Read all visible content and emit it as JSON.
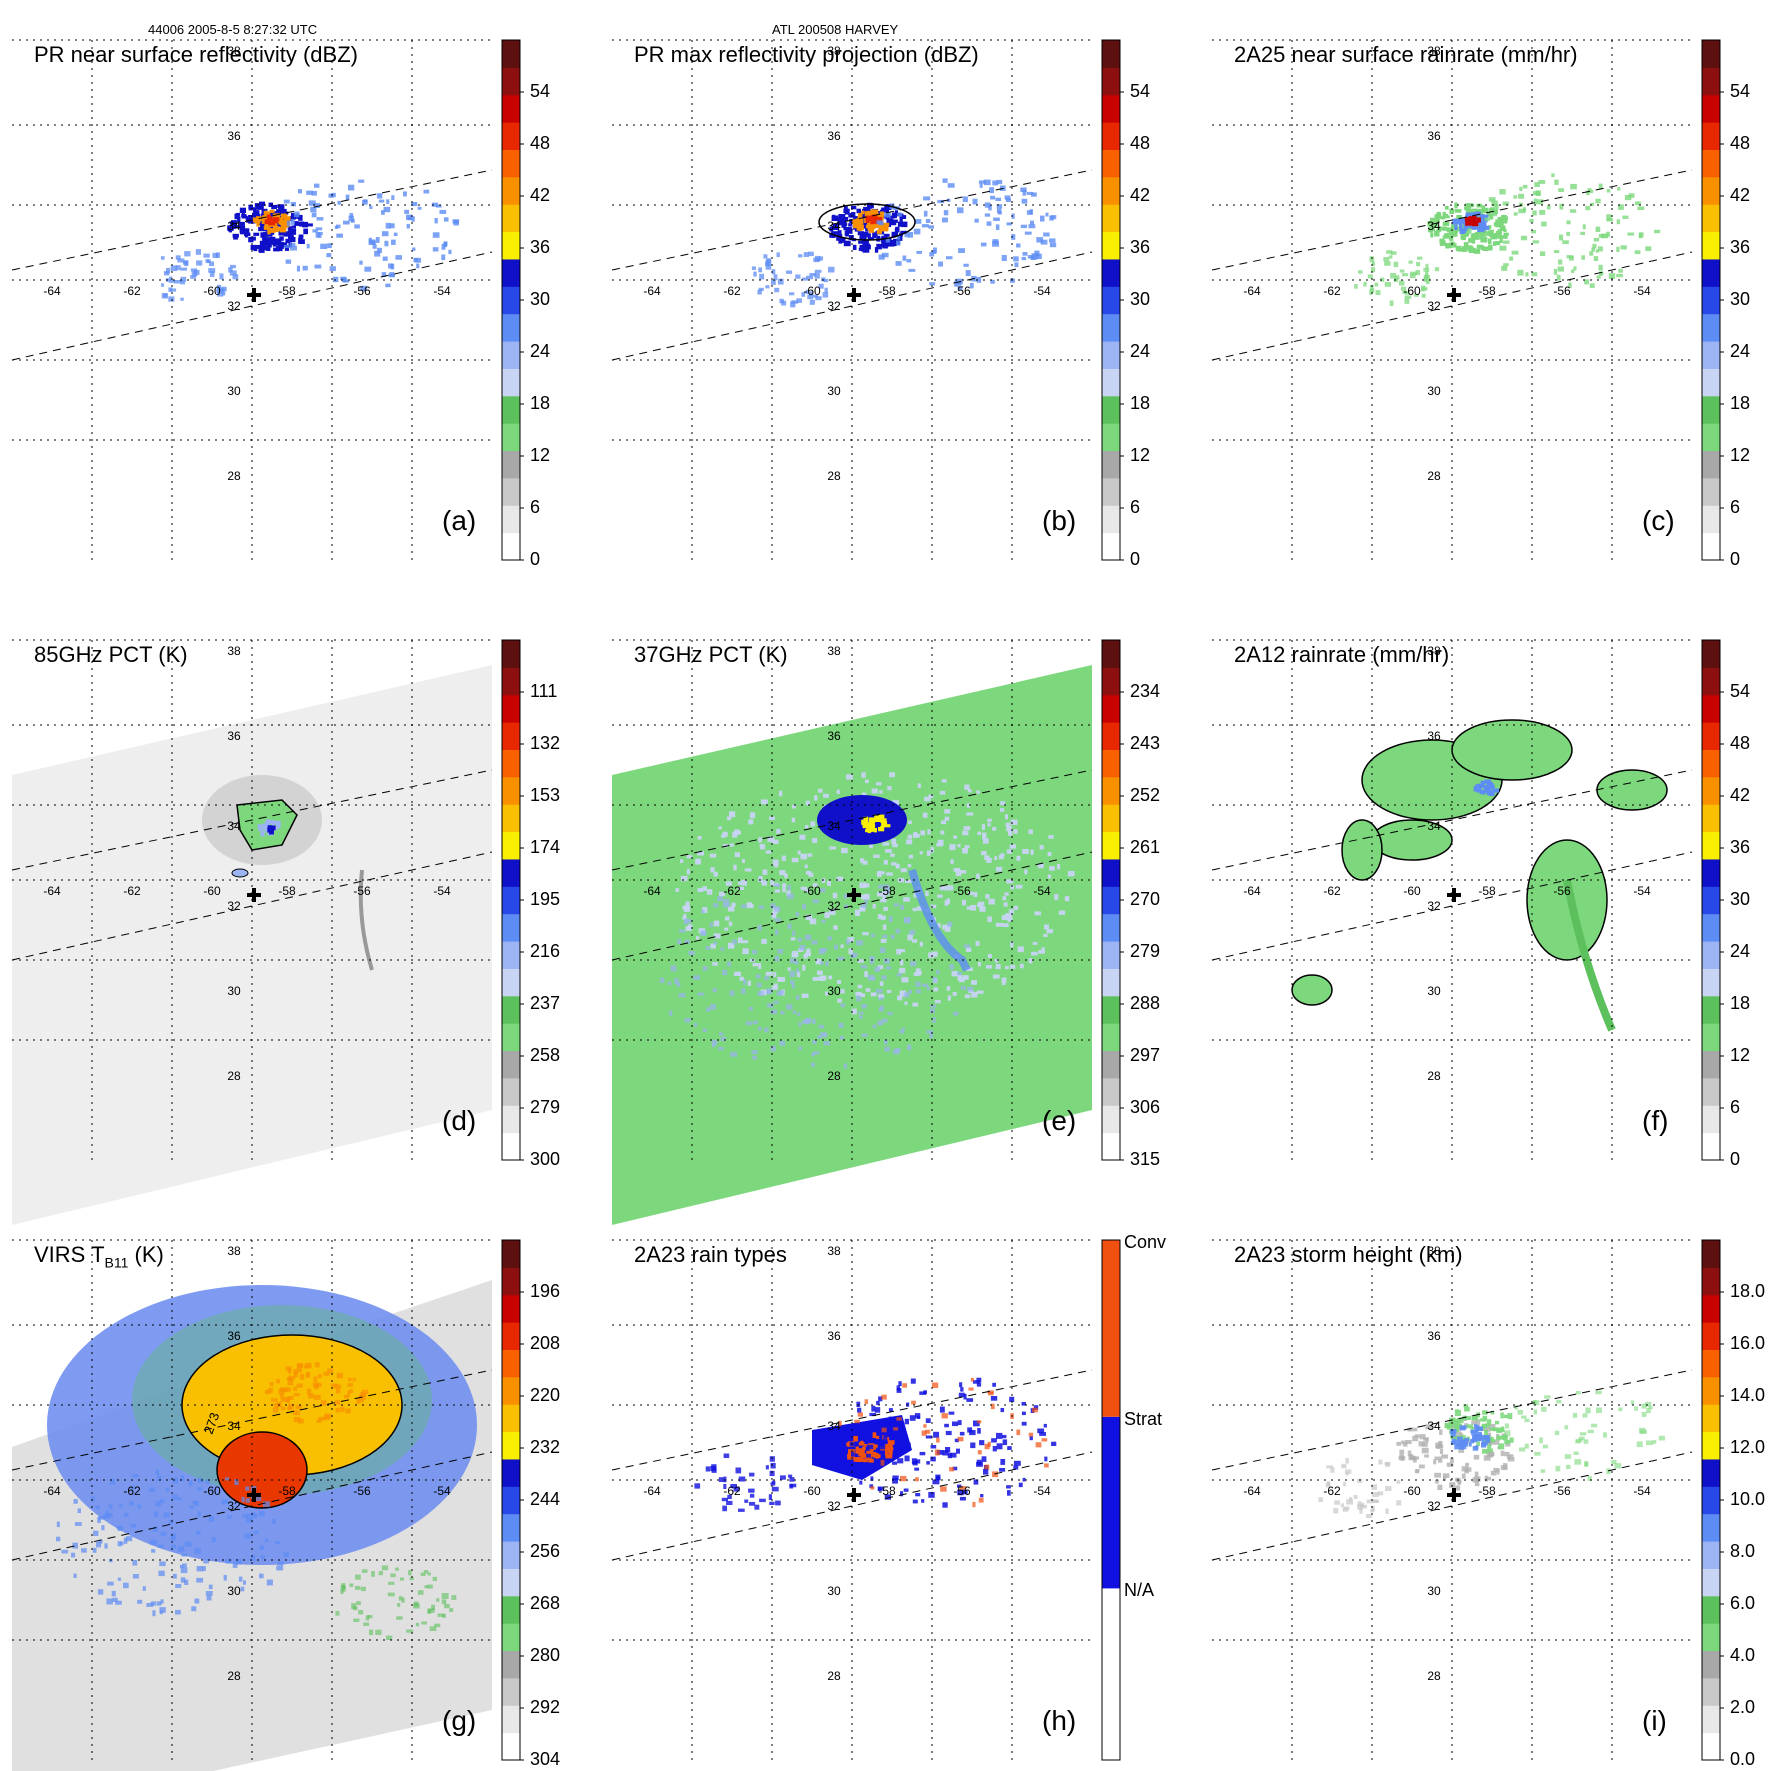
{
  "header": {
    "left": "44006 2005-8-5 8:27:32 UTC",
    "center": "ATL 200508 HARVEY"
  },
  "grid": {
    "lon_labels": [
      "-64",
      "-62",
      "-60",
      "-58",
      "-56",
      "-54"
    ],
    "lat_labels": [
      "38",
      "36",
      "34",
      "32",
      "30",
      "28"
    ]
  },
  "chart_data": [
    {
      "id": "a",
      "letter": "(a)",
      "type": "heatmap",
      "title": "PR near surface reflectivity (dBZ)",
      "colorbar": [
        "0",
        "6",
        "12",
        "18",
        "24",
        "30",
        "36",
        "42",
        "48",
        "54"
      ],
      "swath": "pr",
      "field": "rain"
    },
    {
      "id": "b",
      "letter": "(b)",
      "type": "heatmap",
      "title": "PR max reflectivity projection (dBZ)",
      "colorbar": [
        "0",
        "6",
        "12",
        "18",
        "24",
        "30",
        "36",
        "42",
        "48",
        "54"
      ],
      "swath": "pr",
      "field": "rain"
    },
    {
      "id": "c",
      "letter": "(c)",
      "type": "heatmap",
      "title": "2A25 near surface rainrate (mm/hr)",
      "colorbar": [
        "0",
        "6",
        "12",
        "18",
        "24",
        "30",
        "36",
        "42",
        "48",
        "54"
      ],
      "swath": "pr",
      "field": "rainrate"
    },
    {
      "id": "d",
      "letter": "(d)",
      "type": "heatmap",
      "title": "85GHz PCT (K)",
      "colorbar": [
        "300",
        "279",
        "258",
        "237",
        "216",
        "195",
        "174",
        "153",
        "132",
        "111"
      ],
      "swath": "tmi",
      "field": "pct85"
    },
    {
      "id": "e",
      "letter": "(e)",
      "type": "heatmap",
      "title": "37GHz PCT (K)",
      "colorbar": [
        "315",
        "306",
        "297",
        "288",
        "279",
        "270",
        "261",
        "252",
        "243",
        "234"
      ],
      "swath": "tmi",
      "field": "pct37"
    },
    {
      "id": "f",
      "letter": "(f)",
      "type": "heatmap",
      "title": "2A12 rainrate (mm/hr)",
      "colorbar": [
        "0",
        "6",
        "12",
        "18",
        "24",
        "30",
        "36",
        "42",
        "48",
        "54"
      ],
      "swath": "none",
      "field": "rainrate12"
    },
    {
      "id": "g",
      "letter": "(g)",
      "type": "heatmap",
      "title": "VIRS T",
      "title_sub": "B11",
      "title_tail": " (K)",
      "colorbar": [
        "304",
        "292",
        "280",
        "268",
        "256",
        "244",
        "232",
        "220",
        "208",
        "196"
      ],
      "swath": "virs",
      "field": "ir"
    },
    {
      "id": "h",
      "letter": "(h)",
      "type": "heatmap",
      "title": "2A23 rain types",
      "colorbar_categories": [
        "N/A",
        "Strat",
        "Conv"
      ],
      "swath": "pr",
      "field": "raintype"
    },
    {
      "id": "i",
      "letter": "(i)",
      "type": "heatmap",
      "title": "2A23 storm height (km)",
      "colorbar": [
        "0.0",
        "2.0",
        "4.0",
        "6.0",
        "8.0",
        "10.0",
        "12.0",
        "14.0",
        "16.0",
        "18.0"
      ],
      "swath": "pr",
      "field": "height"
    }
  ],
  "colors": {
    "scale": [
      "#ffffff",
      "#e8e8e8",
      "#c8c8c8",
      "#a8a8a8",
      "#7dd87d",
      "#5cc05c",
      "#c8d4f4",
      "#9cb4f4",
      "#5c8cf4",
      "#2848e8",
      "#1010c8",
      "#f8f000",
      "#f8c000",
      "#f89000",
      "#f86000",
      "#e82800",
      "#c80000",
      "#8c1010",
      "#5c1010"
    ],
    "green_scale": [
      "#7dd87d",
      "#5cc05c",
      "#c8d4f4",
      "#9cb4f4",
      "#5c8cf4",
      "#2848e8",
      "#1010c8",
      "#f8f000",
      "#f8c000",
      "#f89000",
      "#f86000",
      "#e82800",
      "#c80000",
      "#8c1010",
      "#5c1010"
    ],
    "raintype": {
      "conv": "#f05010",
      "strat": "#1010e0",
      "na": "#ffffff"
    }
  }
}
